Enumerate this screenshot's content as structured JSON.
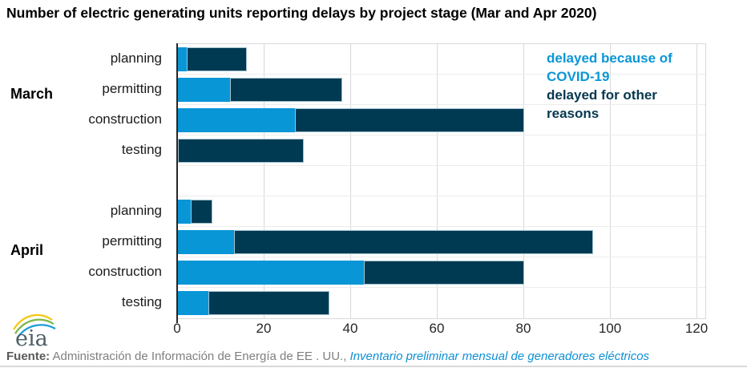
{
  "title": "Number of electric generating units reporting delays by project stage (Mar and Apr 2020)",
  "legend": {
    "covid_label": "delayed because of COVID-19",
    "other_label": "delayed for other reasons"
  },
  "colors": {
    "covid_blue": "#0996d7",
    "other_navy": "#003a52",
    "gridline": "#d9d9d9",
    "axis": "#262626",
    "source_link_blue": "#0e8fd4"
  },
  "chart_data": {
    "type": "bar",
    "orientation": "horizontal",
    "stacked": true,
    "title": "Number of electric generating units reporting delays by project stage (Mar and Apr 2020)",
    "xlabel": "",
    "ylabel": "",
    "xlim": [
      0,
      120
    ],
    "xticks": [
      0,
      20,
      40,
      60,
      80,
      100,
      120
    ],
    "grid": true,
    "legend_position": "top-right",
    "series_names": [
      "delayed because of COVID-19",
      "delayed for other reasons"
    ],
    "groups": [
      {
        "name": "March",
        "categories": [
          "planning",
          "permitting",
          "construction",
          "testing"
        ],
        "series": [
          {
            "name": "delayed because of COVID-19",
            "values": [
              2,
              12,
              27,
              0
            ]
          },
          {
            "name": "delayed for other reasons",
            "values": [
              14,
              26,
              53,
              29
            ]
          }
        ],
        "totals": [
          16,
          38,
          80,
          29
        ]
      },
      {
        "name": "April",
        "categories": [
          "planning",
          "permitting",
          "construction",
          "testing"
        ],
        "series": [
          {
            "name": "delayed because of COVID-19",
            "values": [
              3,
              13,
              43,
              7
            ]
          },
          {
            "name": "delayed for other reasons",
            "values": [
              5,
              83,
              37,
              28
            ]
          }
        ],
        "totals": [
          8,
          96,
          80,
          35
        ]
      }
    ]
  },
  "logo": {
    "text": "eia"
  },
  "footer": {
    "source_label": "Fuente:",
    "source_text": " Administración de Información de Energía de EE . UU., ",
    "source_link": "Inventario preliminar mensual de generadores eléctricos"
  }
}
